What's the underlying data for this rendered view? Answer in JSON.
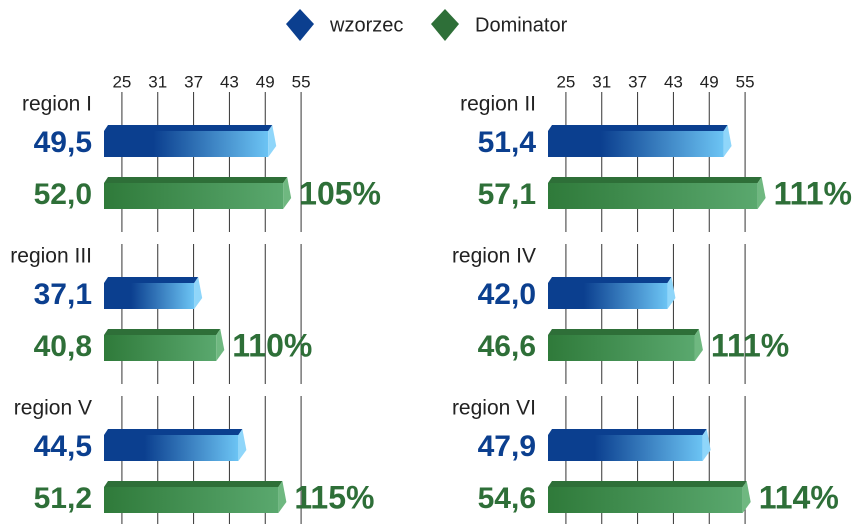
{
  "chart_data": [
    {
      "type": "bar",
      "title": "region I",
      "xlim": [
        22,
        58
      ],
      "xticks": [
        25,
        31,
        37,
        43,
        49,
        55
      ],
      "annotation": "105%",
      "series": [
        {
          "name": "wzorzec",
          "color": "#0b3f8f",
          "values": [
            49.5
          ],
          "value_labels": [
            "49,5"
          ]
        },
        {
          "name": "Dominator",
          "color": "#2e6f38",
          "values": [
            52.0
          ],
          "value_labels": [
            "52,0"
          ]
        }
      ]
    },
    {
      "type": "bar",
      "title": "region II",
      "xlim": [
        22,
        58
      ],
      "xticks": [
        25,
        31,
        37,
        43,
        49,
        55
      ],
      "annotation": "111%",
      "series": [
        {
          "name": "wzorzec",
          "color": "#0b3f8f",
          "values": [
            51.4
          ],
          "value_labels": [
            "51,4"
          ]
        },
        {
          "name": "Dominator",
          "color": "#2e6f38",
          "values": [
            57.1
          ],
          "value_labels": [
            "57,1"
          ]
        }
      ]
    },
    {
      "type": "bar",
      "title": "region III",
      "xlim": [
        22,
        58
      ],
      "xticks": [
        25,
        31,
        37,
        43,
        49,
        55
      ],
      "annotation": "110%",
      "series": [
        {
          "name": "wzorzec",
          "color": "#0b3f8f",
          "values": [
            37.1
          ],
          "value_labels": [
            "37,1"
          ]
        },
        {
          "name": "Dominator",
          "color": "#2e6f38",
          "values": [
            40.8
          ],
          "value_labels": [
            "40,8"
          ]
        }
      ]
    },
    {
      "type": "bar",
      "title": "region IV",
      "xlim": [
        22,
        58
      ],
      "xticks": [
        25,
        31,
        37,
        43,
        49,
        55
      ],
      "annotation": "111%",
      "series": [
        {
          "name": "wzorzec",
          "color": "#0b3f8f",
          "values": [
            42.0
          ],
          "value_labels": [
            "42,0"
          ]
        },
        {
          "name": "Dominator",
          "color": "#2e6f38",
          "values": [
            46.6
          ],
          "value_labels": [
            "46,6"
          ]
        }
      ]
    },
    {
      "type": "bar",
      "title": "region V",
      "xlim": [
        22,
        58
      ],
      "xticks": [
        25,
        31,
        37,
        43,
        49,
        55
      ],
      "annotation": "115%",
      "series": [
        {
          "name": "wzorzec",
          "color": "#0b3f8f",
          "values": [
            44.5
          ],
          "value_labels": [
            "44,5"
          ]
        },
        {
          "name": "Dominator",
          "color": "#2e6f38",
          "values": [
            51.2
          ],
          "value_labels": [
            "51,2"
          ]
        }
      ]
    },
    {
      "type": "bar",
      "title": "region VI",
      "xlim": [
        22,
        58
      ],
      "xticks": [
        25,
        31,
        37,
        43,
        49,
        55
      ],
      "annotation": "114%",
      "series": [
        {
          "name": "wzorzec",
          "color": "#0b3f8f",
          "values": [
            47.9
          ],
          "value_labels": [
            "47,9"
          ]
        },
        {
          "name": "Dominator",
          "color": "#2e6f38",
          "values": [
            54.6
          ],
          "value_labels": [
            "54,6"
          ]
        }
      ]
    }
  ]
}
